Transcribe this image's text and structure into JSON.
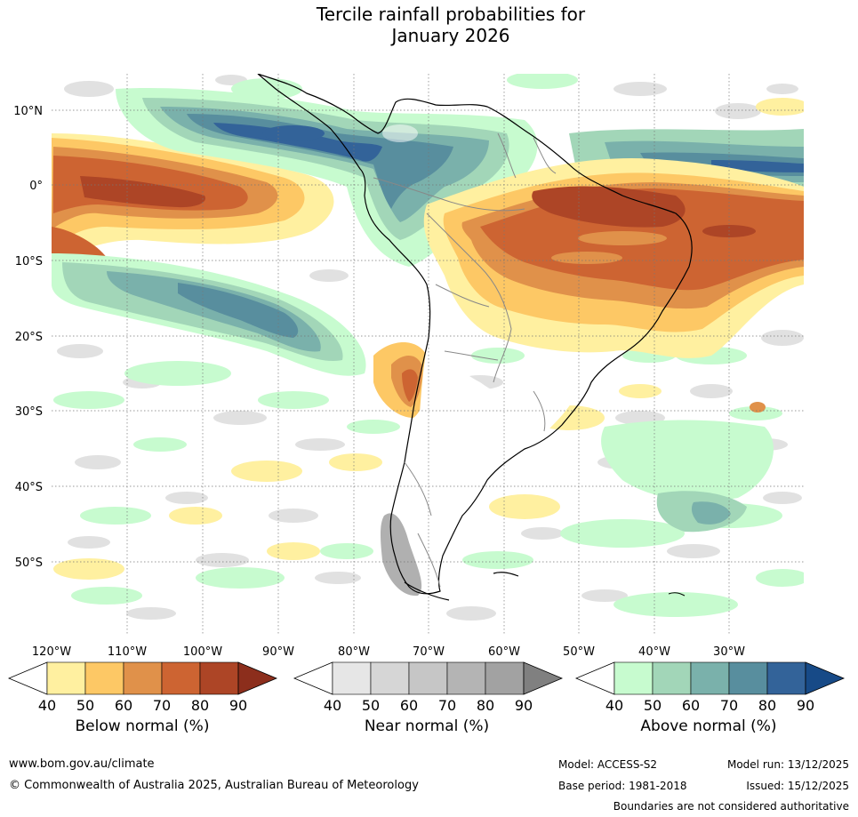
{
  "title": {
    "line1": "Tercile rainfall probabilities for",
    "line2": "January 2026"
  },
  "map": {
    "lat_labels": [
      "10°N",
      "0°",
      "10°S",
      "20°S",
      "30°S",
      "40°S",
      "50°S"
    ],
    "lon_labels": [
      "120°W",
      "110°W",
      "100°W",
      "90°W",
      "80°W",
      "70°W",
      "60°W",
      "50°W",
      "40°W",
      "30°W"
    ]
  },
  "colorbars": [
    {
      "id": "below",
      "label": "Below normal (%)",
      "ticks": [
        "40",
        "50",
        "60",
        "70",
        "80",
        "90"
      ],
      "colors": [
        "#fff0a0",
        "#fdc865",
        "#e0914a",
        "#cd6432",
        "#ad4526",
        "#8c2e1c"
      ]
    },
    {
      "id": "near",
      "label": "Near normal (%)",
      "ticks": [
        "40",
        "50",
        "60",
        "70",
        "80",
        "90"
      ],
      "colors": [
        "#e6e6e6",
        "#d6d6d6",
        "#c6c6c6",
        "#b4b4b4",
        "#a2a2a2",
        "#808080"
      ]
    },
    {
      "id": "above",
      "label": "Above normal (%)",
      "ticks": [
        "40",
        "50",
        "60",
        "70",
        "80",
        "90"
      ],
      "colors": [
        "#c7fbcf",
        "#a2d6b8",
        "#7ab1ab",
        "#588e9e",
        "#336399",
        "#174a87"
      ]
    }
  ],
  "footer": {
    "url": "www.bom.gov.au/climate",
    "copyright": "© Commonwealth of Australia 2025, Australian Bureau of Meteorology",
    "model": "Model: ACCESS-S2",
    "model_run": "Model run: 13/12/2025",
    "base_period": "Base period: 1981-2018",
    "issued": "Issued: 15/12/2025",
    "disclaimer": "Boundaries are not considered authoritative"
  }
}
